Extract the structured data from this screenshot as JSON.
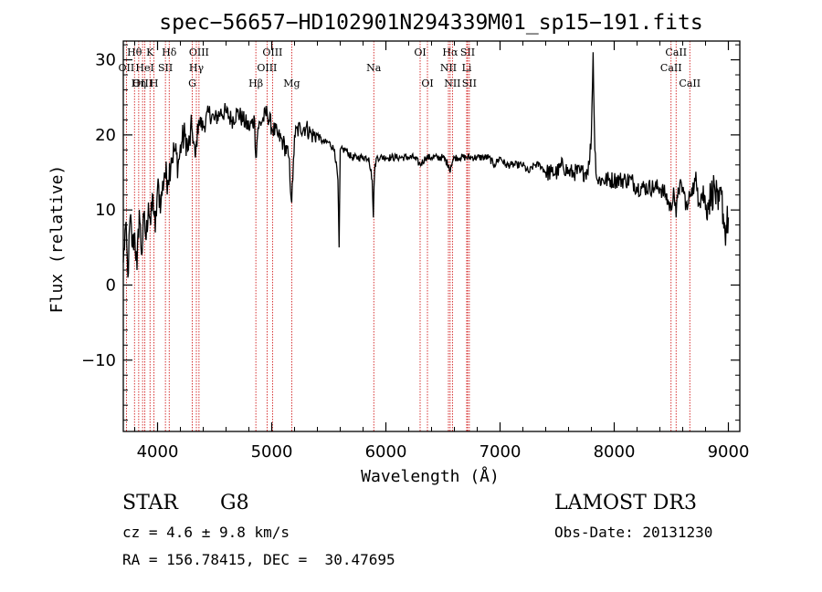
{
  "chart_data": {
    "type": "line",
    "title": "spec−56657−HD102901N294339M01_sp15−191.fits",
    "xlabel": "Wavelength (Å)",
    "ylabel": "Flux (relative)",
    "xlim": [
      3700,
      9100
    ],
    "ylim": [
      -19.5,
      32.5
    ],
    "x_ticks": [
      4000,
      5000,
      6000,
      7000,
      8000,
      9000
    ],
    "y_ticks": [
      -10,
      0,
      10,
      20,
      30
    ],
    "x_tick_labels": [
      "4000",
      "5000",
      "6000",
      "7000",
      "8000",
      "9000"
    ],
    "y_tick_labels": [
      "−10",
      "0",
      "10",
      "20",
      "30"
    ],
    "grid": false,
    "series": [
      {
        "x": [
          3700,
          3720,
          3740,
          3760,
          3780,
          3800,
          3820,
          3840,
          3860,
          3880,
          3900,
          3920,
          3940,
          3960,
          3980,
          4000,
          4030,
          4060,
          4090,
          4120,
          4150,
          4180,
          4210,
          4240,
          4270,
          4300,
          4330,
          4360,
          4400,
          4450,
          4500,
          4550,
          4600,
          4650,
          4700,
          4750,
          4800,
          4850,
          4861,
          4880,
          4920,
          4960,
          5000,
          5050,
          5100,
          5150,
          5175,
          5185,
          5200,
          5250,
          5300,
          5350,
          5400,
          5450,
          5500,
          5550,
          5580,
          5590,
          5600,
          5650,
          5700,
          5750,
          5800,
          5850,
          5880,
          5890,
          5896,
          5905,
          5920,
          5950,
          6000,
          6050,
          6100,
          6150,
          6200,
          6250,
          6300,
          6350,
          6400,
          6450,
          6500,
          6550,
          6563,
          6570,
          6600,
          6650,
          6700,
          6750,
          6800,
          6850,
          6900,
          6950,
          7000,
          7050,
          7100,
          7150,
          7200,
          7250,
          7300,
          7350,
          7400,
          7450,
          7500,
          7550,
          7600,
          7650,
          7700,
          7750,
          7780,
          7800,
          7815,
          7830,
          7850,
          7900,
          7950,
          8000,
          8050,
          8100,
          8150,
          8200,
          8250,
          8300,
          8350,
          8400,
          8450,
          8498,
          8520,
          8542,
          8560,
          8600,
          8640,
          8662,
          8680,
          8700,
          8730,
          8760,
          8790,
          8800,
          8820,
          8850,
          8880,
          8910,
          8940,
          8970,
          9000
        ],
        "y": [
          3,
          8,
          1,
          9,
          5,
          7,
          2,
          10,
          4,
          9,
          6,
          11,
          8,
          12,
          7,
          13,
          11,
          15,
          14,
          17,
          18,
          16,
          19,
          20,
          18,
          21,
          17,
          22,
          21,
          23,
          22,
          23,
          23,
          22,
          23,
          22,
          21,
          22,
          17,
          21,
          22,
          23,
          21,
          20,
          19,
          17,
          11,
          14,
          20,
          21,
          21,
          20,
          20,
          19,
          19,
          18,
          14,
          5,
          18,
          18,
          17,
          17,
          17,
          17,
          14,
          9,
          13,
          16,
          17,
          17,
          17,
          17,
          17,
          17,
          17,
          17,
          16,
          17,
          17,
          17,
          17,
          16,
          15,
          16,
          17,
          17,
          17,
          17,
          17,
          17,
          17,
          16,
          17,
          16,
          16,
          16,
          16,
          15,
          16,
          16,
          15,
          15,
          15,
          16,
          15,
          15,
          15,
          15,
          16,
          20,
          31,
          18,
          14,
          14,
          14,
          14,
          14,
          14,
          14,
          13,
          13,
          13,
          13,
          13,
          12,
          10,
          13,
          9,
          13,
          13,
          10,
          12,
          13,
          13,
          13,
          12,
          12,
          10,
          11,
          12,
          13,
          10,
          12,
          7,
          9
        ]
      }
    ],
    "spectral_lines": [
      {
        "label": "Hθ",
        "x": 3798,
        "row": 1
      },
      {
        "label": "OII",
        "x": 3727,
        "row": 2
      },
      {
        "label": "OIII",
        "x": 3869,
        "row": 3
      },
      {
        "label": "K",
        "x": 3934,
        "row": 1
      },
      {
        "label": "HeI",
        "x": 3889,
        "row": 2
      },
      {
        "label": "Hη",
        "x": 3835,
        "row": 3
      },
      {
        "label": "Hδ",
        "x": 4102,
        "row": 1
      },
      {
        "label": "SII",
        "x": 4069,
        "row": 2
      },
      {
        "label": "H",
        "x": 3969,
        "row": 3
      },
      {
        "label": "OIII",
        "x": 4363,
        "row": 1
      },
      {
        "label": "Hγ",
        "x": 4340,
        "row": 2
      },
      {
        "label": "G",
        "x": 4304,
        "row": 3
      },
      {
        "label": "OIII",
        "x": 5007,
        "row": 1
      },
      {
        "label": "OIII",
        "x": 4959,
        "row": 2
      },
      {
        "label": "Hβ",
        "x": 4861,
        "row": 3
      },
      {
        "label": "Mg",
        "x": 5175,
        "row": 3
      },
      {
        "label": "Na",
        "x": 5894,
        "row": 2
      },
      {
        "label": "OI",
        "x": 6300,
        "row": 1
      },
      {
        "label": "OI",
        "x": 6364,
        "row": 3
      },
      {
        "label": "Hα",
        "x": 6563,
        "row": 1
      },
      {
        "label": "NII",
        "x": 6548,
        "row": 2
      },
      {
        "label": "NII",
        "x": 6583,
        "row": 3
      },
      {
        "label": "SII",
        "x": 6716,
        "row": 1
      },
      {
        "label": "Li",
        "x": 6708,
        "row": 2
      },
      {
        "label": "SII",
        "x": 6731,
        "row": 3
      },
      {
        "label": "CaII",
        "x": 8542,
        "row": 1
      },
      {
        "label": "CaII",
        "x": 8498,
        "row": 2
      },
      {
        "label": "CaII",
        "x": 8662,
        "row": 3
      }
    ]
  },
  "info": {
    "class": "STAR",
    "subclass": "G8",
    "survey": "LAMOST DR3",
    "cz": "cz = 4.6 ± 9.8 km/s",
    "obs_date": "Obs-Date: 20131230",
    "radec": "RA = 156.78415, DEC =  30.47695"
  },
  "colors": {
    "spectrum": "#000000",
    "line_markers": "#cc0000",
    "axes": "#000000",
    "background": "#ffffff"
  }
}
